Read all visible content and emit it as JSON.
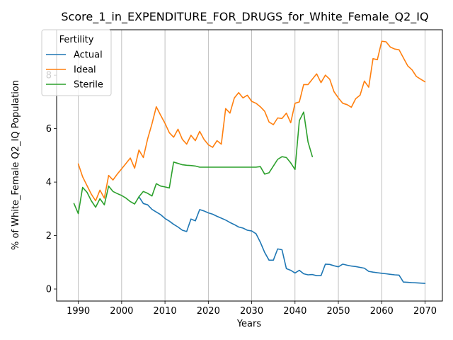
{
  "chart_data": {
    "type": "line",
    "title": "Score_1_in_EXPENDITURE_FOR_DRUGS_for_White_Female_Q2_IQ",
    "xlabel": "Years",
    "ylabel": "% of White_Female Q2_IQ Population",
    "xlim": [
      1985,
      2074
    ],
    "ylim": [
      -0.45,
      9.7
    ],
    "xticks": [
      1990,
      2000,
      2010,
      2020,
      2030,
      2040,
      2050,
      2060,
      2070
    ],
    "yticks": [
      0,
      2,
      4,
      6,
      8
    ],
    "grid": "x-only",
    "legend": {
      "title": "Fertility",
      "placement": "upper-left"
    },
    "series": [
      {
        "name": "Actual",
        "color": "#1f77b4",
        "x": [
          2004,
          2005,
          2006,
          2007,
          2008,
          2009,
          2010,
          2011,
          2012,
          2013,
          2014,
          2015,
          2016,
          2017,
          2018,
          2019,
          2020,
          2021,
          2022,
          2023,
          2024,
          2025,
          2026,
          2027,
          2028,
          2029,
          2030,
          2031,
          2032,
          2033,
          2034,
          2035,
          2036,
          2037,
          2038,
          2039,
          2040,
          2041,
          2042,
          2043,
          2044,
          2045,
          2046,
          2047,
          2048,
          2049,
          2050,
          2051,
          2052,
          2053,
          2054,
          2055,
          2056,
          2057,
          2058,
          2059,
          2060,
          2061,
          2062,
          2063,
          2064,
          2065,
          2066,
          2067,
          2068,
          2069,
          2070
        ],
        "y": [
          3.45,
          3.2,
          3.15,
          2.98,
          2.88,
          2.78,
          2.64,
          2.54,
          2.42,
          2.32,
          2.2,
          2.15,
          2.62,
          2.55,
          2.97,
          2.92,
          2.85,
          2.8,
          2.72,
          2.65,
          2.58,
          2.49,
          2.41,
          2.32,
          2.28,
          2.2,
          2.17,
          2.07,
          1.75,
          1.37,
          1.08,
          1.08,
          1.5,
          1.47,
          0.76,
          0.7,
          0.6,
          0.7,
          0.57,
          0.53,
          0.54,
          0.5,
          0.5,
          0.93,
          0.92,
          0.87,
          0.83,
          0.93,
          0.89,
          0.86,
          0.84,
          0.81,
          0.78,
          0.66,
          0.63,
          0.61,
          0.59,
          0.57,
          0.55,
          0.53,
          0.52,
          0.26,
          0.25,
          0.24,
          0.23,
          0.22,
          0.21
        ]
      },
      {
        "name": "Ideal",
        "color": "#ff7f0e",
        "x": [
          1990,
          1991,
          1992,
          1993,
          1994,
          1995,
          1996,
          1997,
          1998,
          1999,
          2000,
          2001,
          2002,
          2003,
          2004,
          2005,
          2006,
          2007,
          2008,
          2009,
          2010,
          2011,
          2012,
          2013,
          2014,
          2015,
          2016,
          2017,
          2018,
          2019,
          2020,
          2021,
          2022,
          2023,
          2024,
          2025,
          2026,
          2027,
          2028,
          2029,
          2030,
          2031,
          2032,
          2033,
          2034,
          2035,
          2036,
          2037,
          2038,
          2039,
          2040,
          2041,
          2042,
          2043,
          2044,
          2045,
          2046,
          2047,
          2048,
          2049,
          2050,
          2051,
          2052,
          2053,
          2054,
          2055,
          2056,
          2057,
          2058,
          2059,
          2060,
          2061,
          2062,
          2063,
          2064,
          2065,
          2066,
          2067,
          2068,
          2069,
          2070
        ],
        "y": [
          4.68,
          4.2,
          3.87,
          3.55,
          3.3,
          3.7,
          3.4,
          4.25,
          4.08,
          4.3,
          4.5,
          4.7,
          4.9,
          4.52,
          5.2,
          4.92,
          5.62,
          6.18,
          6.82,
          6.5,
          6.2,
          5.85,
          5.68,
          5.98,
          5.6,
          5.42,
          5.75,
          5.55,
          5.9,
          5.6,
          5.4,
          5.3,
          5.55,
          5.42,
          6.75,
          6.58,
          7.15,
          7.35,
          7.15,
          7.25,
          7.02,
          6.95,
          6.82,
          6.65,
          6.25,
          6.15,
          6.4,
          6.38,
          6.58,
          6.22,
          6.95,
          7.0,
          7.65,
          7.65,
          7.85,
          8.05,
          7.72,
          8.0,
          7.85,
          7.38,
          7.15,
          6.95,
          6.9,
          6.8,
          7.12,
          7.25,
          7.78,
          7.55,
          8.62,
          8.58,
          9.27,
          9.25,
          9.05,
          8.98,
          8.95,
          8.65,
          8.35,
          8.2,
          7.95,
          7.85,
          7.75
        ]
      },
      {
        "name": "Sterile",
        "color": "#2ca02c",
        "x": [
          1989,
          1990,
          1991,
          1992,
          1993,
          1994,
          1995,
          1996,
          1997,
          1998,
          1999,
          2000,
          2001,
          2002,
          2003,
          2004,
          2005,
          2006,
          2007,
          2008,
          2009,
          2010,
          2011,
          2012,
          2013,
          2014,
          2015,
          2016,
          2017,
          2018,
          2019,
          2020,
          2021,
          2022,
          2023,
          2024,
          2025,
          2026,
          2027,
          2028,
          2029,
          2030,
          2031,
          2032,
          2033,
          2034,
          2035,
          2036,
          2037,
          2038,
          2039,
          2040,
          2041,
          2042,
          2043,
          2044
        ],
        "y": [
          3.2,
          2.82,
          3.8,
          3.62,
          3.3,
          3.06,
          3.38,
          3.15,
          3.85,
          3.65,
          3.57,
          3.5,
          3.4,
          3.27,
          3.18,
          3.45,
          3.65,
          3.58,
          3.48,
          3.94,
          3.85,
          3.82,
          3.78,
          4.75,
          4.7,
          4.65,
          4.63,
          4.62,
          4.6,
          4.56,
          4.56,
          4.56,
          4.56,
          4.56,
          4.56,
          4.56,
          4.56,
          4.56,
          4.56,
          4.56,
          4.56,
          4.56,
          4.56,
          4.58,
          4.3,
          4.35,
          4.6,
          4.85,
          4.95,
          4.92,
          4.72,
          4.47,
          6.3,
          6.62,
          5.5,
          4.95
        ]
      }
    ]
  }
}
